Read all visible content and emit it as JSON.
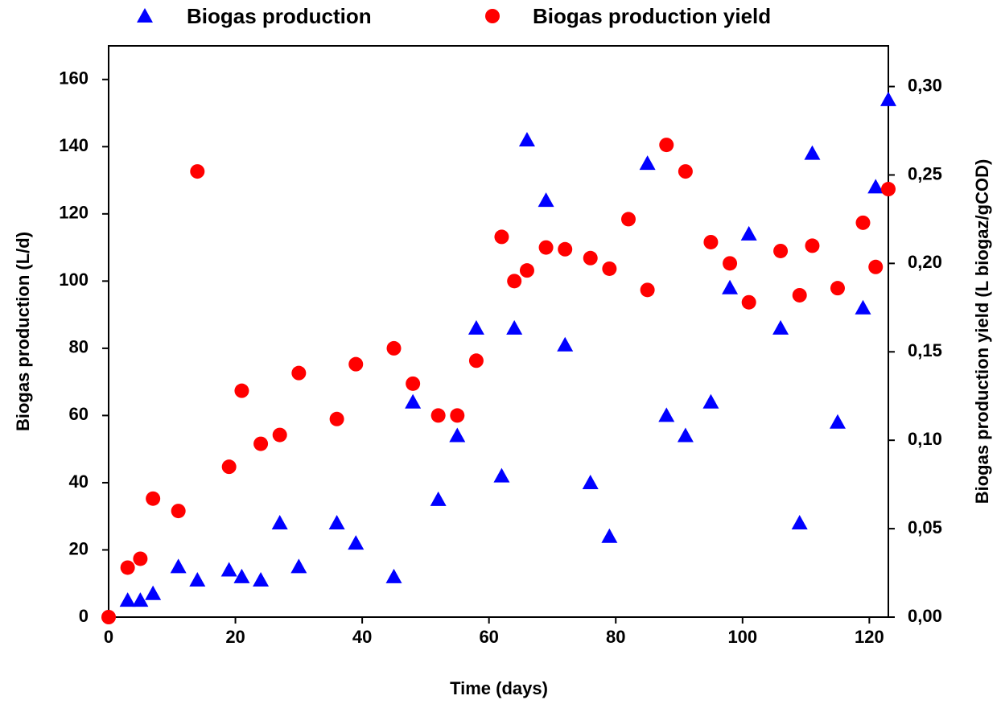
{
  "chart_data": {
    "type": "scatter",
    "xlabel": "Time (days)",
    "ylabel": "Biogas production (L/d)",
    "y2label": "Biogas production yield (L biogaz/gCOD)",
    "xlim": [
      0,
      123
    ],
    "xticks": [
      0,
      20,
      40,
      60,
      80,
      100,
      120
    ],
    "ylim": [
      0,
      170
    ],
    "yticks": [
      0,
      20,
      40,
      60,
      80,
      100,
      120,
      140,
      160
    ],
    "y2lim": [
      0,
      0.323
    ],
    "y2ticks": [
      {
        "value": 0,
        "label": "0,00"
      },
      {
        "value": 0.05,
        "label": "0,05"
      },
      {
        "value": 0.1,
        "label": "0,10"
      },
      {
        "value": 0.15,
        "label": "0,15"
      },
      {
        "value": 0.2,
        "label": "0,20"
      },
      {
        "value": 0.25,
        "label": "0,25"
      },
      {
        "value": 0.3,
        "label": "0,30"
      }
    ],
    "series": [
      {
        "name": "Biogas production",
        "color": "#0000ff",
        "marker": "triangle",
        "axis": "y",
        "x": [
          3,
          5,
          7,
          11,
          14,
          19,
          21,
          24,
          27,
          30,
          36,
          39,
          45,
          48,
          52,
          55,
          58,
          62,
          64,
          66,
          69,
          72,
          76,
          79,
          85,
          88,
          91,
          95,
          98,
          101,
          106,
          109,
          111,
          115,
          119,
          121,
          123
        ],
        "values": [
          5,
          5,
          7,
          15,
          11,
          14,
          12,
          11,
          28,
          15,
          28,
          22,
          12,
          64,
          35,
          54,
          86,
          42,
          86,
          142,
          124,
          81,
          40,
          24,
          135,
          60,
          54,
          64,
          98,
          114,
          86,
          28,
          138,
          58,
          92,
          128,
          154
        ]
      },
      {
        "name": "Biogas production yield",
        "color": "#ff0000",
        "marker": "circle",
        "axis": "y2",
        "x": [
          0,
          3,
          5,
          7,
          11,
          14,
          19,
          21,
          24,
          27,
          30,
          36,
          39,
          45,
          48,
          52,
          55,
          58,
          62,
          64,
          66,
          69,
          72,
          76,
          79,
          82,
          85,
          88,
          91,
          95,
          98,
          101,
          106,
          109,
          111,
          115,
          119,
          121,
          123
        ],
        "values": [
          0,
          0.028,
          0.033,
          0.067,
          0.06,
          0.252,
          0.085,
          0.128,
          0.098,
          0.103,
          0.138,
          0.112,
          0.143,
          0.152,
          0.132,
          0.114,
          0.114,
          0.145,
          0.215,
          0.19,
          0.196,
          0.209,
          0.208,
          0.203,
          0.197,
          0.225,
          0.185,
          0.267,
          0.252,
          0.212,
          0.2,
          0.178,
          0.207,
          0.182,
          0.21,
          0.186,
          0.223,
          0.198,
          0.242
        ]
      }
    ]
  }
}
